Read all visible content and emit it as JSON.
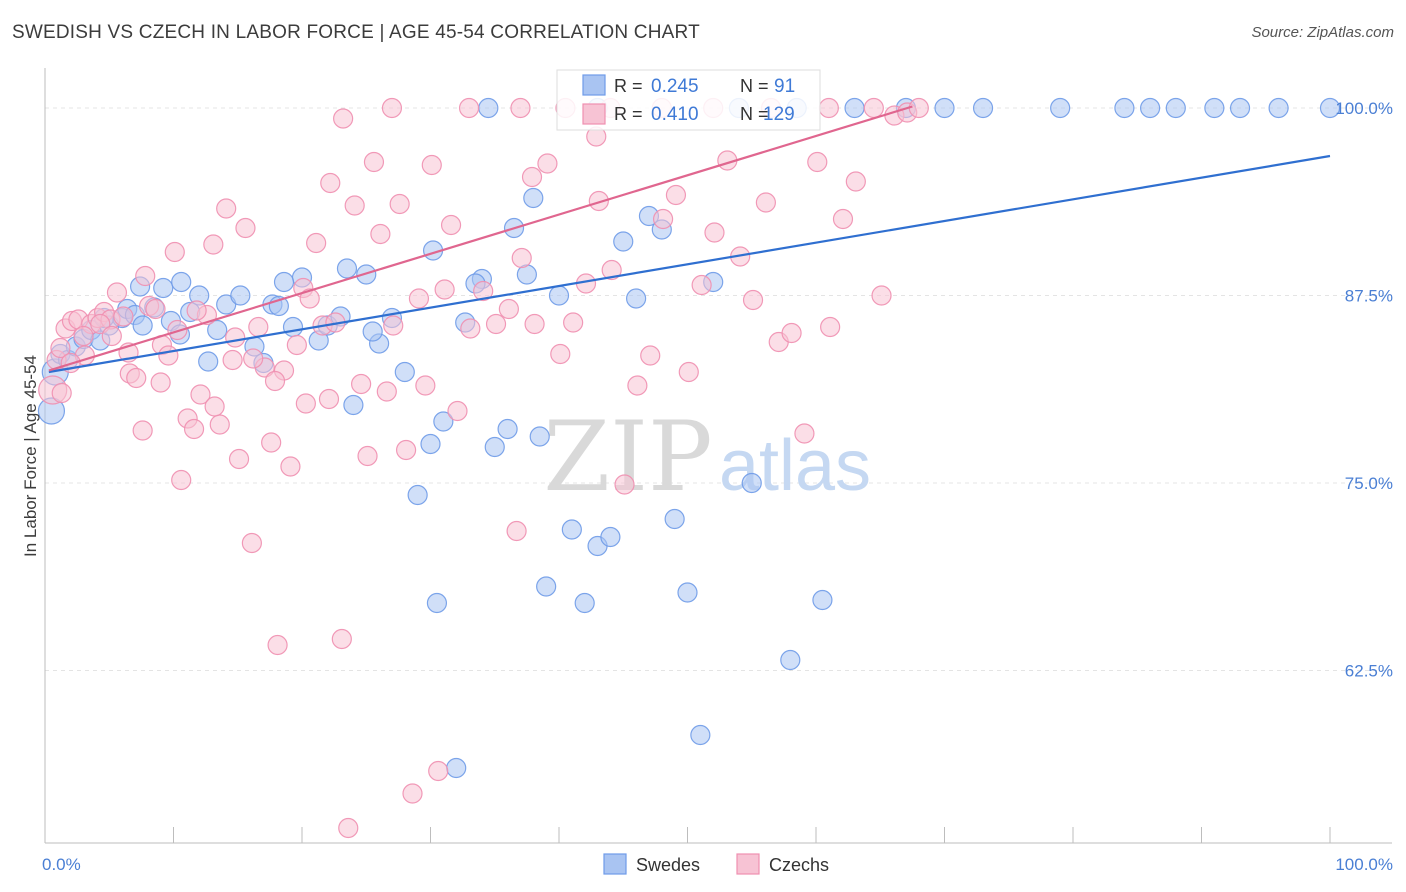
{
  "title": "SWEDISH VS CZECH IN LABOR FORCE | AGE 45-54 CORRELATION CHART",
  "source": "Source: ZipAtlas.com",
  "watermark": {
    "zip": "ZIP",
    "atlas": "atlas"
  },
  "chart_data": {
    "type": "scatter",
    "title": "SWEDISH VS CZECH IN LABOR FORCE | AGE 45-54 CORRELATION CHART",
    "xlabel": "",
    "ylabel": "In Labor Force | Age 45-54",
    "xlim": [
      0,
      100
    ],
    "ylim": [
      51,
      102
    ],
    "x_tick_labels": [
      "0.0%",
      "100.0%"
    ],
    "y_ticks": [
      62.5,
      75.0,
      87.5,
      100.0
    ],
    "y_tick_labels": [
      "62.5%",
      "75.0%",
      "87.5%",
      "100.0%"
    ],
    "grid": true,
    "legend_position": "bottom-center",
    "series": [
      {
        "name": "Swedes",
        "color": "#6f9be8",
        "fill": "#a9c4f2",
        "line_color": "#2f6fd0",
        "R": "0.245",
        "N": "91",
        "trend": {
          "x0": 0.3,
          "y0": 82.4,
          "x1": 100,
          "y1": 96.8
        },
        "points": [
          [
            0.8,
            82.4
          ],
          [
            0.5,
            79.8
          ],
          [
            1.2,
            83.6
          ],
          [
            1.8,
            83.2
          ],
          [
            2.4,
            84.1
          ],
          [
            3.0,
            84.6
          ],
          [
            3.6,
            85.2
          ],
          [
            4.3,
            84.5
          ],
          [
            5.0,
            85.5
          ],
          [
            6.0,
            86.0
          ],
          [
            6.4,
            86.6
          ],
          [
            7.0,
            86.2
          ],
          [
            7.4,
            88.1
          ],
          [
            8.5,
            86.7
          ],
          [
            9.2,
            88.0
          ],
          [
            9.8,
            85.8
          ],
          [
            10.5,
            84.9
          ],
          [
            11.3,
            86.4
          ],
          [
            12.0,
            87.5
          ],
          [
            12.7,
            83.1
          ],
          [
            13.4,
            85.2
          ],
          [
            14.1,
            86.9
          ],
          [
            15.2,
            87.5
          ],
          [
            16.3,
            84.1
          ],
          [
            17.0,
            83.0
          ],
          [
            17.7,
            86.9
          ],
          [
            18.2,
            86.8
          ],
          [
            19.3,
            85.4
          ],
          [
            20.0,
            88.7
          ],
          [
            21.3,
            84.5
          ],
          [
            22.0,
            85.5
          ],
          [
            23.0,
            86.1
          ],
          [
            23.5,
            89.3
          ],
          [
            24.0,
            80.2
          ],
          [
            25.0,
            88.9
          ],
          [
            26.0,
            84.3
          ],
          [
            27.0,
            86.0
          ],
          [
            28.0,
            82.4
          ],
          [
            29.0,
            74.2
          ],
          [
            30.0,
            77.6
          ],
          [
            30.5,
            67.0
          ],
          [
            31.0,
            79.1
          ],
          [
            32.0,
            56.0
          ],
          [
            32.7,
            85.7
          ],
          [
            34.0,
            88.6
          ],
          [
            35.0,
            77.4
          ],
          [
            36.0,
            78.6
          ],
          [
            36.5,
            92.0
          ],
          [
            37.5,
            88.9
          ],
          [
            38.5,
            78.1
          ],
          [
            39.0,
            68.1
          ],
          [
            40.0,
            87.5
          ],
          [
            41.0,
            71.9
          ],
          [
            42.0,
            67.0
          ],
          [
            43.0,
            70.8
          ],
          [
            44.0,
            71.4
          ],
          [
            45.0,
            91.1
          ],
          [
            46.0,
            87.3
          ],
          [
            47.0,
            92.8
          ],
          [
            48.0,
            91.9
          ],
          [
            49.0,
            72.6
          ],
          [
            50.0,
            67.7
          ],
          [
            51.0,
            58.2
          ],
          [
            52.0,
            88.4
          ],
          [
            55.0,
            75.0
          ],
          [
            58.0,
            63.2
          ],
          [
            60.5,
            67.2
          ],
          [
            33.5,
            88.3
          ],
          [
            34.5,
            100.0
          ],
          [
            38.0,
            94.0
          ],
          [
            30.2,
            90.5
          ],
          [
            25.5,
            85.1
          ],
          [
            18.6,
            88.4
          ],
          [
            10.6,
            88.4
          ],
          [
            7.6,
            85.5
          ],
          [
            4.6,
            86.0
          ],
          [
            43.0,
            100.0
          ],
          [
            54.0,
            100.0
          ],
          [
            58.5,
            100.0
          ],
          [
            63.0,
            100.0
          ],
          [
            67.0,
            100.0
          ],
          [
            73.0,
            100.0
          ],
          [
            79.0,
            100.0
          ],
          [
            84.0,
            100.0
          ],
          [
            86.0,
            100.0
          ],
          [
            88.0,
            100.0
          ],
          [
            91.0,
            100.0
          ],
          [
            93.0,
            100.0
          ],
          [
            96.0,
            100.0
          ],
          [
            100.0,
            100.0
          ],
          [
            70.0,
            100.0
          ]
        ]
      },
      {
        "name": "Czechs",
        "color": "#ef8fb0",
        "fill": "#f7c3d4",
        "line_color": "#e0668f",
        "R": "0.410",
        "N": "129",
        "trend": {
          "x0": 0.3,
          "y0": 82.5,
          "x1": 67.5,
          "y1": 100.1
        },
        "points": [
          [
            0.6,
            81.2
          ],
          [
            0.9,
            83.2
          ],
          [
            1.2,
            84.0
          ],
          [
            1.6,
            85.3
          ],
          [
            2.1,
            85.8
          ],
          [
            2.6,
            85.9
          ],
          [
            3.1,
            83.5
          ],
          [
            3.6,
            85.6
          ],
          [
            4.1,
            86.0
          ],
          [
            4.6,
            86.4
          ],
          [
            5.1,
            85.9
          ],
          [
            5.6,
            87.7
          ],
          [
            6.1,
            86.1
          ],
          [
            6.6,
            82.3
          ],
          [
            7.1,
            82.0
          ],
          [
            7.6,
            78.5
          ],
          [
            8.1,
            86.8
          ],
          [
            8.6,
            86.6
          ],
          [
            9.1,
            84.2
          ],
          [
            9.6,
            83.5
          ],
          [
            10.1,
            90.4
          ],
          [
            10.6,
            75.2
          ],
          [
            11.1,
            79.3
          ],
          [
            11.6,
            78.6
          ],
          [
            12.1,
            80.9
          ],
          [
            12.6,
            86.2
          ],
          [
            13.1,
            90.9
          ],
          [
            13.6,
            78.9
          ],
          [
            14.1,
            93.3
          ],
          [
            14.6,
            83.2
          ],
          [
            15.1,
            76.6
          ],
          [
            15.6,
            92.0
          ],
          [
            16.1,
            71.0
          ],
          [
            16.6,
            85.4
          ],
          [
            17.1,
            82.7
          ],
          [
            17.6,
            77.7
          ],
          [
            18.1,
            64.2
          ],
          [
            18.6,
            82.5
          ],
          [
            19.1,
            76.1
          ],
          [
            19.6,
            84.2
          ],
          [
            20.1,
            88.0
          ],
          [
            20.6,
            87.3
          ],
          [
            21.1,
            91.0
          ],
          [
            21.6,
            85.5
          ],
          [
            22.1,
            80.6
          ],
          [
            22.6,
            85.7
          ],
          [
            23.1,
            64.6
          ],
          [
            23.6,
            52.0
          ],
          [
            24.1,
            93.5
          ],
          [
            24.6,
            81.6
          ],
          [
            25.1,
            76.8
          ],
          [
            25.6,
            96.4
          ],
          [
            26.1,
            91.6
          ],
          [
            26.6,
            81.1
          ],
          [
            27.1,
            85.5
          ],
          [
            27.6,
            93.6
          ],
          [
            28.1,
            77.2
          ],
          [
            28.6,
            54.3
          ],
          [
            29.1,
            87.3
          ],
          [
            29.6,
            81.5
          ],
          [
            30.1,
            96.2
          ],
          [
            30.6,
            55.8
          ],
          [
            31.1,
            87.9
          ],
          [
            31.6,
            92.2
          ],
          [
            32.1,
            79.8
          ],
          [
            33.1,
            85.3
          ],
          [
            34.1,
            87.8
          ],
          [
            35.1,
            85.6
          ],
          [
            36.1,
            86.6
          ],
          [
            37.1,
            90.0
          ],
          [
            38.1,
            85.6
          ],
          [
            39.1,
            96.3
          ],
          [
            40.1,
            83.6
          ],
          [
            41.1,
            85.7
          ],
          [
            42.1,
            88.3
          ],
          [
            43.1,
            93.8
          ],
          [
            44.1,
            89.2
          ],
          [
            45.1,
            74.9
          ],
          [
            46.1,
            81.5
          ],
          [
            47.1,
            83.5
          ],
          [
            48.1,
            92.6
          ],
          [
            49.1,
            94.2
          ],
          [
            50.1,
            82.4
          ],
          [
            51.1,
            88.2
          ],
          [
            52.1,
            91.7
          ],
          [
            53.1,
            96.5
          ],
          [
            54.1,
            90.1
          ],
          [
            55.1,
            87.2
          ],
          [
            56.1,
            93.7
          ],
          [
            57.1,
            84.4
          ],
          [
            58.1,
            85.0
          ],
          [
            59.1,
            78.3
          ],
          [
            60.1,
            96.4
          ],
          [
            61.1,
            85.4
          ],
          [
            62.1,
            92.6
          ],
          [
            63.1,
            95.1
          ],
          [
            65.1,
            87.5
          ],
          [
            66.1,
            99.5
          ],
          [
            67.1,
            99.7
          ],
          [
            1.3,
            81.0
          ],
          [
            2.0,
            83.0
          ],
          [
            3.0,
            84.8
          ],
          [
            4.3,
            85.6
          ],
          [
            5.2,
            84.8
          ],
          [
            6.5,
            83.7
          ],
          [
            7.8,
            88.8
          ],
          [
            9.0,
            81.7
          ],
          [
            10.3,
            85.2
          ],
          [
            11.8,
            86.5
          ],
          [
            13.2,
            80.1
          ],
          [
            14.8,
            84.7
          ],
          [
            16.2,
            83.3
          ],
          [
            17.9,
            81.8
          ],
          [
            20.3,
            80.3
          ],
          [
            23.2,
            99.3
          ],
          [
            27.0,
            100.0
          ],
          [
            33.0,
            100.0
          ],
          [
            37.0,
            100.0
          ],
          [
            40.5,
            100.0
          ],
          [
            44.0,
            100.0
          ],
          [
            48.0,
            100.0
          ],
          [
            52.0,
            100.0
          ],
          [
            56.5,
            100.0
          ],
          [
            61.0,
            100.0
          ],
          [
            64.5,
            100.0
          ],
          [
            68.0,
            100.0
          ],
          [
            22.2,
            95.0
          ],
          [
            37.9,
            95.4
          ],
          [
            42.9,
            98.1
          ],
          [
            36.7,
            71.8
          ]
        ]
      }
    ]
  }
}
